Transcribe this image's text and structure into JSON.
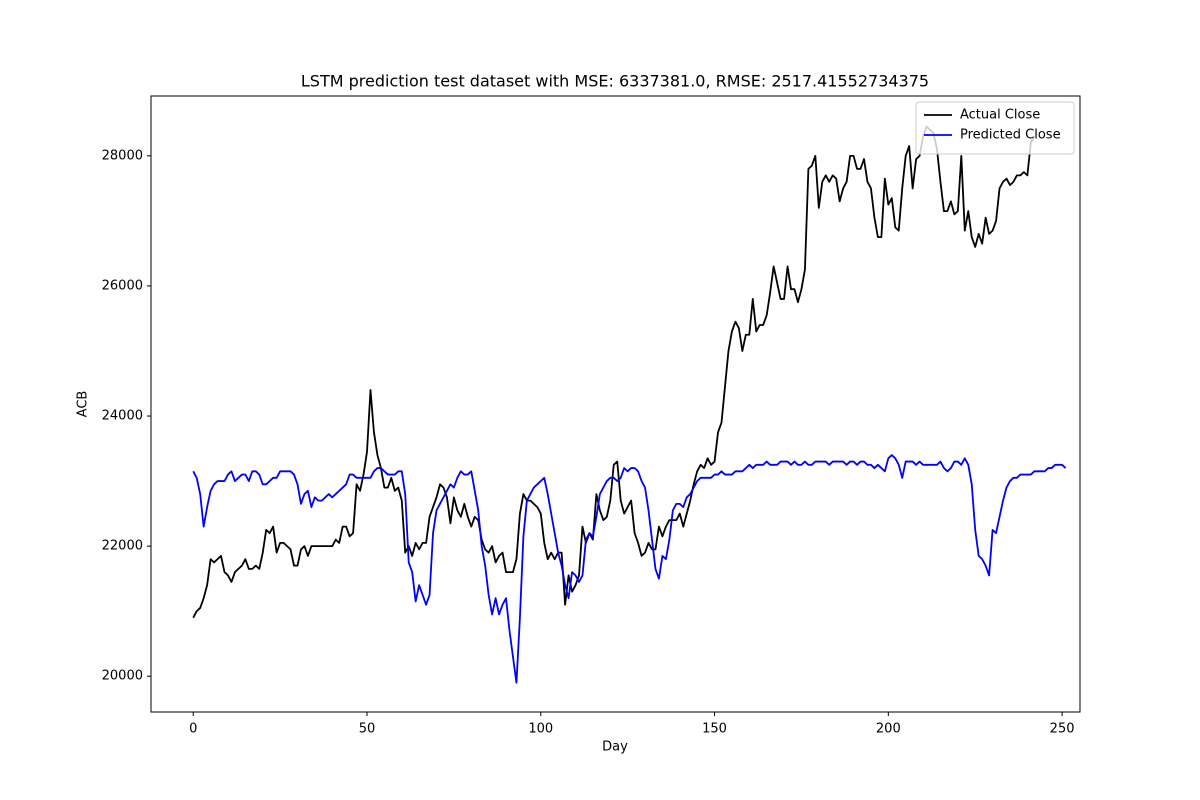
{
  "chart_data": {
    "type": "line",
    "title": "LSTM prediction test dataset with MSE: 6337381.0, RMSE: 2517.41552734375",
    "x_label": "Day",
    "y_label": "ACB",
    "x": [
      0,
      1,
      2,
      3,
      4,
      5,
      6,
      7,
      8,
      9,
      10,
      11,
      12,
      13,
      14,
      15,
      16,
      17,
      18,
      19,
      20,
      21,
      22,
      23,
      24,
      25,
      26,
      27,
      28,
      29,
      30,
      31,
      32,
      33,
      34,
      35,
      36,
      37,
      38,
      39,
      40,
      41,
      42,
      43,
      44,
      45,
      46,
      47,
      48,
      49,
      50,
      51,
      52,
      53,
      54,
      55,
      56,
      57,
      58,
      59,
      60,
      61,
      62,
      63,
      64,
      65,
      66,
      67,
      68,
      69,
      70,
      71,
      72,
      73,
      74,
      75,
      76,
      77,
      78,
      79,
      80,
      81,
      82,
      83,
      84,
      85,
      86,
      87,
      88,
      89,
      90,
      91,
      92,
      93,
      94,
      95,
      96,
      97,
      98,
      99,
      100,
      101,
      102,
      103,
      104,
      105,
      106,
      107,
      108,
      109,
      110,
      111,
      112,
      113,
      114,
      115,
      116,
      117,
      118,
      119,
      120,
      121,
      122,
      123,
      124,
      125,
      126,
      127,
      128,
      129,
      130,
      131,
      132,
      133,
      134,
      135,
      136,
      137,
      138,
      139,
      140,
      141,
      142,
      143,
      144,
      145,
      146,
      147,
      148,
      149,
      150,
      151,
      152,
      153,
      154,
      155,
      156,
      157,
      158,
      159,
      160,
      161,
      162,
      163,
      164,
      165,
      166,
      167,
      168,
      169,
      170,
      171,
      172,
      173,
      174,
      175,
      176,
      177,
      178,
      179,
      180,
      181,
      182,
      183,
      184,
      185,
      186,
      187,
      188,
      189,
      190,
      191,
      192,
      193,
      194,
      195,
      196,
      197,
      198,
      199,
      200,
      201,
      202,
      203,
      204,
      205,
      206,
      207,
      208,
      209,
      210,
      211,
      212,
      213,
      214,
      215,
      216,
      217,
      218,
      219,
      220,
      221,
      222,
      223,
      224,
      225,
      226,
      227,
      228,
      229,
      230,
      231,
      232,
      233,
      234,
      235,
      236,
      237,
      238,
      239,
      240,
      241,
      242,
      243,
      244,
      245,
      246,
      247,
      248,
      249,
      250,
      251
    ],
    "series": [
      {
        "name": "Actual Close",
        "color": "#000000",
        "values": [
          20900,
          21000,
          21050,
          21200,
          21400,
          21800,
          21750,
          21800,
          21850,
          21600,
          21550,
          21450,
          21600,
          21650,
          21700,
          21800,
          21650,
          21650,
          21700,
          21650,
          21900,
          22250,
          22200,
          22300,
          21900,
          22050,
          22050,
          22000,
          21950,
          21700,
          21700,
          21950,
          22000,
          21850,
          22000,
          22000,
          22000,
          22000,
          22000,
          22000,
          22000,
          22100,
          22050,
          22300,
          22300,
          22150,
          22200,
          22950,
          22850,
          23100,
          23450,
          24400,
          23750,
          23400,
          23200,
          22900,
          22900,
          23050,
          22850,
          22900,
          22700,
          21900,
          22000,
          21850,
          22050,
          21950,
          22050,
          22050,
          22450,
          22600,
          22750,
          22950,
          22900,
          22750,
          22350,
          22750,
          22550,
          22450,
          22650,
          22450,
          22300,
          22450,
          22400,
          22100,
          21950,
          21900,
          22000,
          21750,
          21850,
          21900,
          21600,
          21600,
          21600,
          21800,
          22500,
          22800,
          22700,
          22700,
          22650,
          22600,
          22500,
          22050,
          21800,
          21900,
          21800,
          21900,
          21900,
          21100,
          21550,
          21300,
          21400,
          21550,
          22300,
          22050,
          22200,
          22100,
          22800,
          22550,
          22400,
          22450,
          22700,
          23250,
          23300,
          22700,
          22500,
          22600,
          22700,
          22200,
          22050,
          21850,
          21900,
          22050,
          21950,
          21950,
          22300,
          22150,
          22300,
          22400,
          22400,
          22400,
          22500,
          22300,
          22500,
          22700,
          22950,
          23150,
          23250,
          23200,
          23350,
          23250,
          23300,
          23750,
          23900,
          24450,
          25000,
          25300,
          25450,
          25350,
          25000,
          25250,
          25250,
          25800,
          25300,
          25400,
          25400,
          25550,
          25900,
          26300,
          26050,
          25800,
          25800,
          26300,
          25950,
          25950,
          25750,
          25950,
          26250,
          27800,
          27850,
          28000,
          27200,
          27600,
          27700,
          27600,
          27700,
          27650,
          27300,
          27500,
          27600,
          28000,
          28000,
          27800,
          27800,
          27950,
          27600,
          27500,
          27050,
          26750,
          26750,
          27650,
          27250,
          27350,
          26900,
          26850,
          27500,
          28000,
          28150,
          27500,
          27950,
          28000,
          28300,
          28450,
          28400,
          28350,
          28100,
          27600,
          27150,
          27150,
          27300,
          27100,
          27150,
          28000,
          26850,
          27150,
          26750,
          26600,
          26800,
          26650,
          27050,
          26800,
          26850,
          27000,
          27500,
          27600,
          27650,
          27550,
          27600,
          27700,
          27700,
          27750,
          27700,
          28200,
          28300,
          null,
          null,
          null,
          null,
          null,
          null,
          null,
          null,
          null
        ]
      },
      {
        "name": "Predicted Close",
        "color": "#0000ff",
        "values": [
          23150,
          23050,
          22800,
          22300,
          22600,
          22850,
          22950,
          23000,
          23000,
          23000,
          23100,
          23150,
          23000,
          23050,
          23100,
          23100,
          23000,
          23150,
          23150,
          23100,
          22950,
          22950,
          23000,
          23050,
          23050,
          23150,
          23150,
          23150,
          23150,
          23100,
          22950,
          22650,
          22800,
          22850,
          22600,
          22750,
          22700,
          22700,
          22750,
          22800,
          22750,
          22800,
          22850,
          22900,
          22950,
          23100,
          23100,
          23050,
          23050,
          23050,
          23050,
          23050,
          23150,
          23200,
          23200,
          23150,
          23100,
          23100,
          23100,
          23150,
          23150,
          22800,
          21750,
          21600,
          21150,
          21400,
          21250,
          21100,
          21250,
          22200,
          22550,
          22650,
          22750,
          22850,
          22950,
          22900,
          23050,
          23150,
          23100,
          23100,
          23150,
          22850,
          22550,
          22000,
          21700,
          21250,
          20950,
          21200,
          20950,
          21100,
          21200,
          20700,
          20300,
          19900,
          20900,
          22150,
          22700,
          22800,
          22900,
          22950,
          23000,
          23050,
          22800,
          22500,
          22200,
          21900,
          21700,
          21400,
          21200,
          21600,
          21550,
          21450,
          21550,
          22100,
          22200,
          22150,
          22450,
          22800,
          22900,
          23000,
          23050,
          23050,
          23000,
          23050,
          23200,
          23150,
          23200,
          23200,
          23150,
          23000,
          22900,
          22550,
          22100,
          21650,
          21500,
          21850,
          21800,
          22100,
          22550,
          22650,
          22650,
          22600,
          22750,
          22800,
          22900,
          23000,
          23050,
          23050,
          23050,
          23050,
          23100,
          23100,
          23150,
          23100,
          23100,
          23100,
          23150,
          23150,
          23150,
          23200,
          23250,
          23200,
          23250,
          23250,
          23250,
          23300,
          23250,
          23250,
          23250,
          23300,
          23300,
          23300,
          23250,
          23300,
          23250,
          23250,
          23300,
          23250,
          23250,
          23300,
          23300,
          23300,
          23300,
          23250,
          23300,
          23300,
          23300,
          23300,
          23250,
          23300,
          23300,
          23250,
          23300,
          23300,
          23250,
          23250,
          23200,
          23250,
          23200,
          23150,
          23350,
          23400,
          23350,
          23250,
          23050,
          23300,
          23300,
          23300,
          23250,
          23300,
          23250,
          23250,
          23250,
          23250,
          23250,
          23300,
          23200,
          23150,
          23200,
          23300,
          23300,
          23250,
          23350,
          23250,
          22950,
          22250,
          21850,
          21800,
          21700,
          21550,
          22250,
          22200,
          22450,
          22700,
          22900,
          23000,
          23050,
          23050,
          23100,
          23100,
          23100,
          23100,
          23150,
          23150,
          23150,
          23150,
          23200,
          23200,
          23250,
          23250,
          23250,
          23200
        ]
      }
    ],
    "xlim": [
      -12.15,
      255.15
    ],
    "xticks": [
      0,
      50,
      100,
      150,
      200,
      250
    ],
    "ylim": [
      19450,
      28920
    ],
    "yticks": [
      20000,
      22000,
      24000,
      26000,
      28000
    ],
    "legend": "upper right",
    "grid": false
  }
}
